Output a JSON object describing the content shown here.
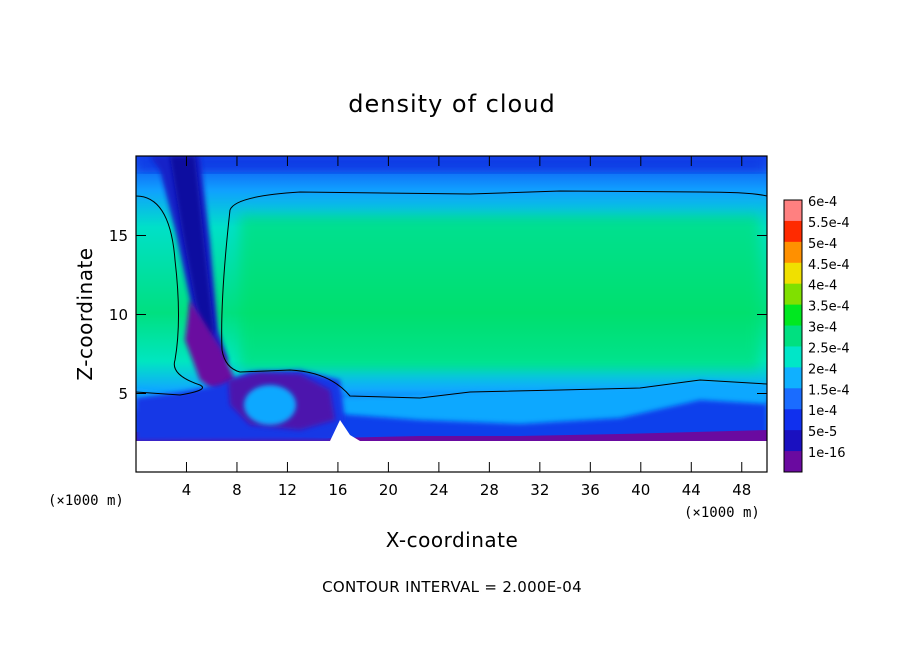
{
  "chart_data": {
    "type": "heatmap",
    "title": "density of cloud",
    "xlabel": "X-coordinate",
    "ylabel": "Z-coordinate",
    "x_unit": "(×1000 m)",
    "y_unit": "(×1000 m)",
    "xlim": [
      0,
      50
    ],
    "ylim": [
      0,
      20
    ],
    "x_ticks": [
      4,
      8,
      12,
      16,
      20,
      24,
      28,
      32,
      36,
      40,
      44,
      48
    ],
    "y_ticks": [
      5,
      10,
      15
    ],
    "colorbar": {
      "levels": [
        "1e-16",
        "5e-5",
        "1e-4",
        "1.5e-4",
        "2e-4",
        "2.5e-4",
        "3e-4",
        "3.5e-4",
        "4e-4",
        "4.5e-4",
        "5e-4",
        "5.5e-4",
        "6e-4"
      ],
      "colors": [
        "#6a0aa0",
        "#1a10c0",
        "#1030ee",
        "#1a6cff",
        "#10b0ff",
        "#00e6c8",
        "#00e080",
        "#00e820",
        "#80e000",
        "#f0e000",
        "#ff9000",
        "#ff2a00",
        "#ff8080"
      ]
    },
    "contour_interval_label": "CONTOUR INTERVAL = 2.000E-04"
  }
}
